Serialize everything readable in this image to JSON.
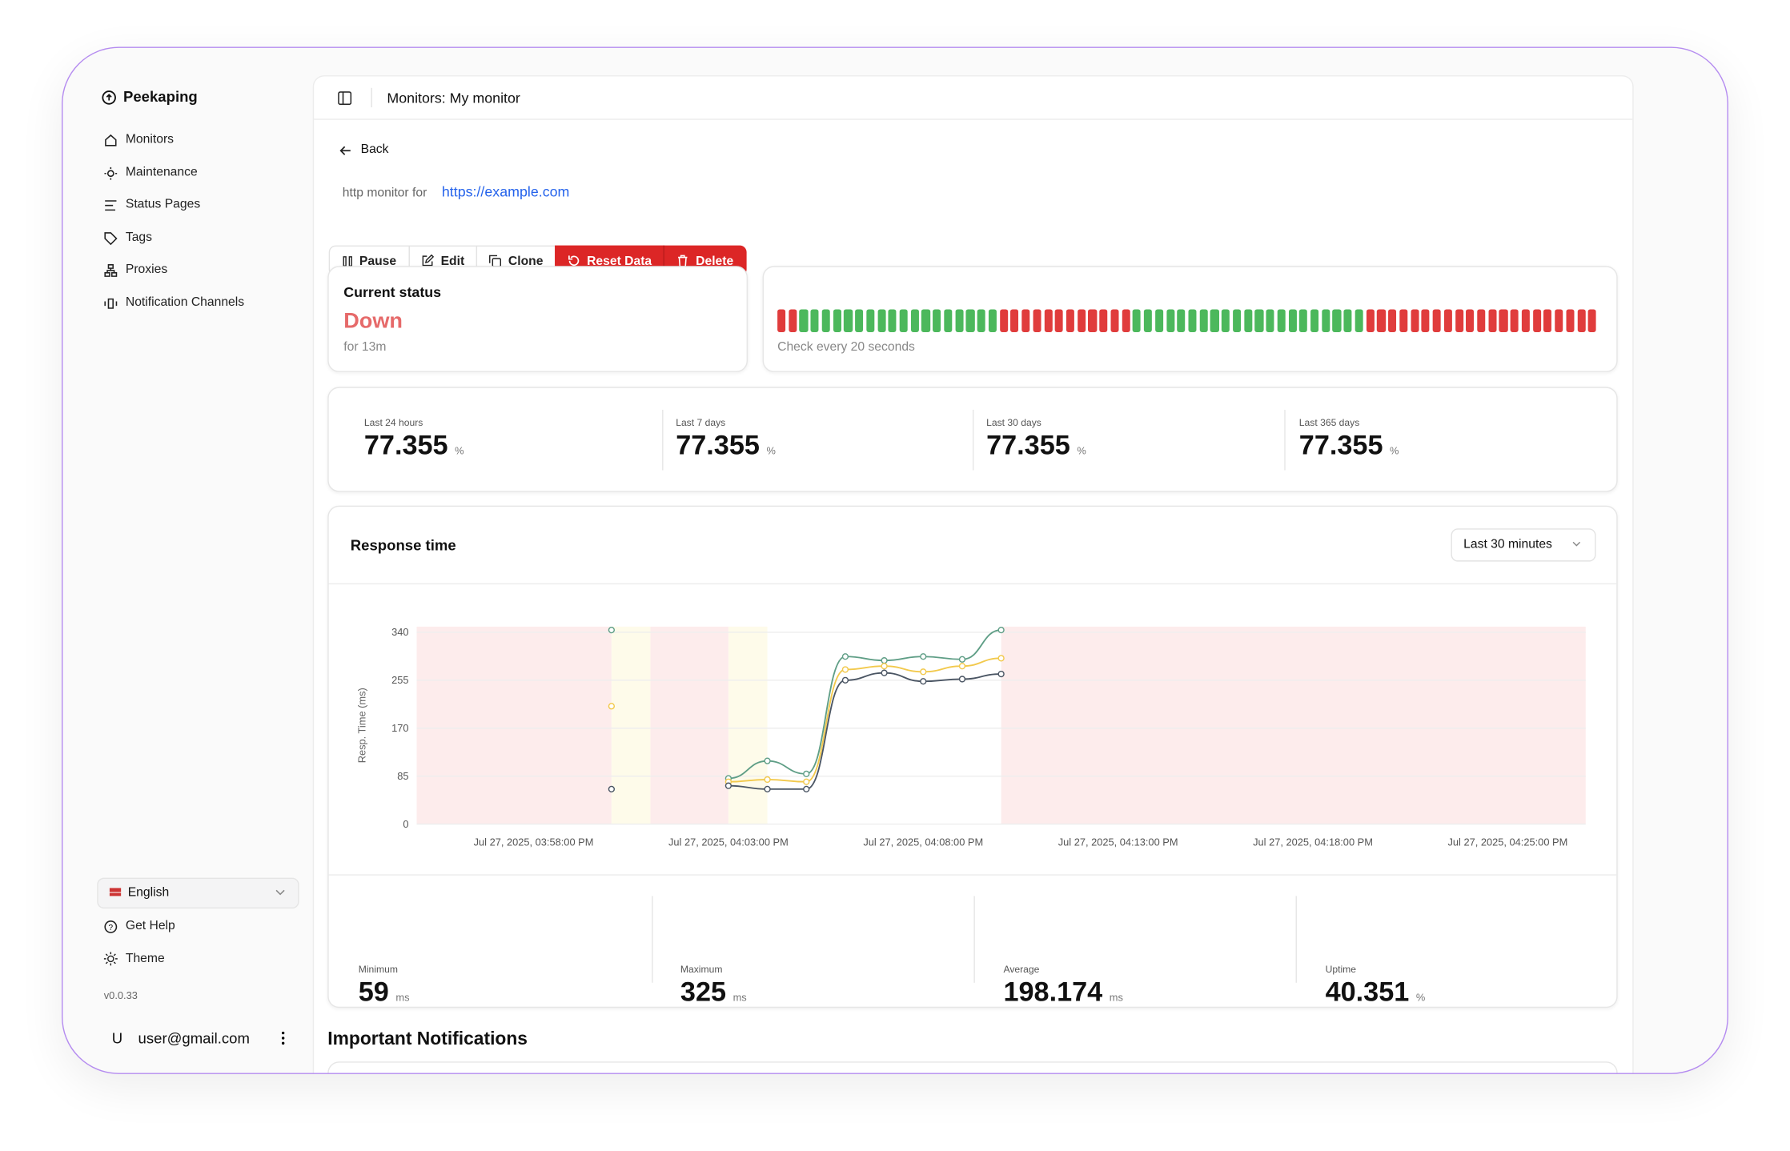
{
  "sidebar": {
    "brand": "Peekaping",
    "nav": [
      "Monitors",
      "Maintenance",
      "Status Pages",
      "Tags",
      "Proxies",
      "Notification Channels"
    ],
    "language": "English",
    "help": "Get Help",
    "theme": "Theme",
    "version": "v0.0.33",
    "user_initial": "U",
    "user": "user@gmail.com"
  },
  "header": {
    "title": "Monitors: My monitor"
  },
  "monitor": {
    "back": "Back",
    "type_text": "http monitor for",
    "url": "https://example.com",
    "actions": [
      "Pause",
      "Edit",
      "Clone",
      "Reset Data",
      "Delete"
    ]
  },
  "status": {
    "label": "Current status",
    "value": "Down",
    "duration": "for 13m",
    "check_text": "Check every 20 seconds",
    "heartbeats": [
      {
        "color": "#e03c3c",
        "count": 2
      },
      {
        "color": "#4cb85c",
        "count": 18
      },
      {
        "color": "#e03c3c",
        "count": 12
      },
      {
        "color": "#4cb85c",
        "count": 21
      },
      {
        "color": "#e03c3c",
        "count": 21
      }
    ]
  },
  "uptime": [
    {
      "label": "Last 24 hours",
      "value": 77.355,
      "unit": "%"
    },
    {
      "label": "Last 7 days",
      "value": 77.355,
      "unit": "%"
    },
    {
      "label": "Last 30 days",
      "value": 77.355,
      "unit": "%"
    },
    {
      "label": "Last 365 days",
      "value": 77.355,
      "unit": "%"
    }
  ],
  "chart_data": {
    "type": "line",
    "title": "Response time",
    "range": "Last 30 minutes",
    "y_label": "Resp. Time (ms)",
    "categories": [
      null,
      null,
      null,
      "Jul 27, 2025, 03:58:00 PM",
      null,
      null,
      null,
      null,
      "Jul 27, 2025, 04:03:00 PM",
      null,
      null,
      null,
      null,
      "Jul 27, 2025, 04:08:00 PM",
      null,
      null,
      null,
      null,
      "Jul 27, 2025, 04:13:00 PM",
      null,
      null,
      null,
      null,
      "Jul 27, 2025, 04:18:00 PM",
      null,
      null,
      null,
      null,
      "Jul 27, 2025, 04:25:00 PM",
      null,
      null
    ],
    "series": [
      {
        "color": "#5f9e86",
        "values": [
          null,
          null,
          null,
          null,
          null,
          344,
          null,
          null,
          81,
          112,
          89,
          297,
          290,
          297,
          292,
          344,
          null,
          null,
          null,
          null,
          null,
          null,
          null,
          null,
          null,
          null,
          null,
          null,
          null,
          null,
          null
        ]
      },
      {
        "color": "#f2c94c",
        "values": [
          null,
          null,
          null,
          null,
          null,
          209,
          null,
          null,
          75,
          79,
          75,
          274,
          280,
          270,
          280,
          294,
          null,
          null,
          null,
          null,
          null,
          null,
          null,
          null,
          null,
          null,
          null,
          null,
          null,
          null,
          null
        ]
      },
      {
        "color": "#4a5563",
        "values": [
          null,
          null,
          null,
          null,
          null,
          62,
          null,
          null,
          68,
          62,
          62,
          255,
          268,
          253,
          257,
          266,
          null,
          null,
          null,
          null,
          null,
          null,
          null,
          null,
          null,
          null,
          null,
          null,
          null,
          null,
          null
        ]
      }
    ],
    "bands": [
      {
        "start": 0,
        "end": 5,
        "color": "#fdecec"
      },
      {
        "start": 5,
        "end": 6,
        "color": "#fefbea"
      },
      {
        "start": 6,
        "end": 8,
        "color": "#fdecec"
      },
      {
        "start": 8,
        "end": 9,
        "color": "#fefbea"
      },
      {
        "start": 15,
        "end": 30,
        "color": "#fdecec"
      }
    ],
    "ylim": [
      0,
      350
    ],
    "yticks": [
      0,
      85,
      170,
      255,
      340
    ],
    "grid": true
  },
  "stats": [
    {
      "label": "Minimum",
      "value": 59,
      "unit": "ms"
    },
    {
      "label": "Maximum",
      "value": 325,
      "unit": "ms"
    },
    {
      "label": "Average",
      "value": 198.174,
      "unit": "ms"
    },
    {
      "label": "Uptime",
      "value": 40.351,
      "unit": "%"
    }
  ],
  "notifications": {
    "title": "Important Notifications"
  }
}
